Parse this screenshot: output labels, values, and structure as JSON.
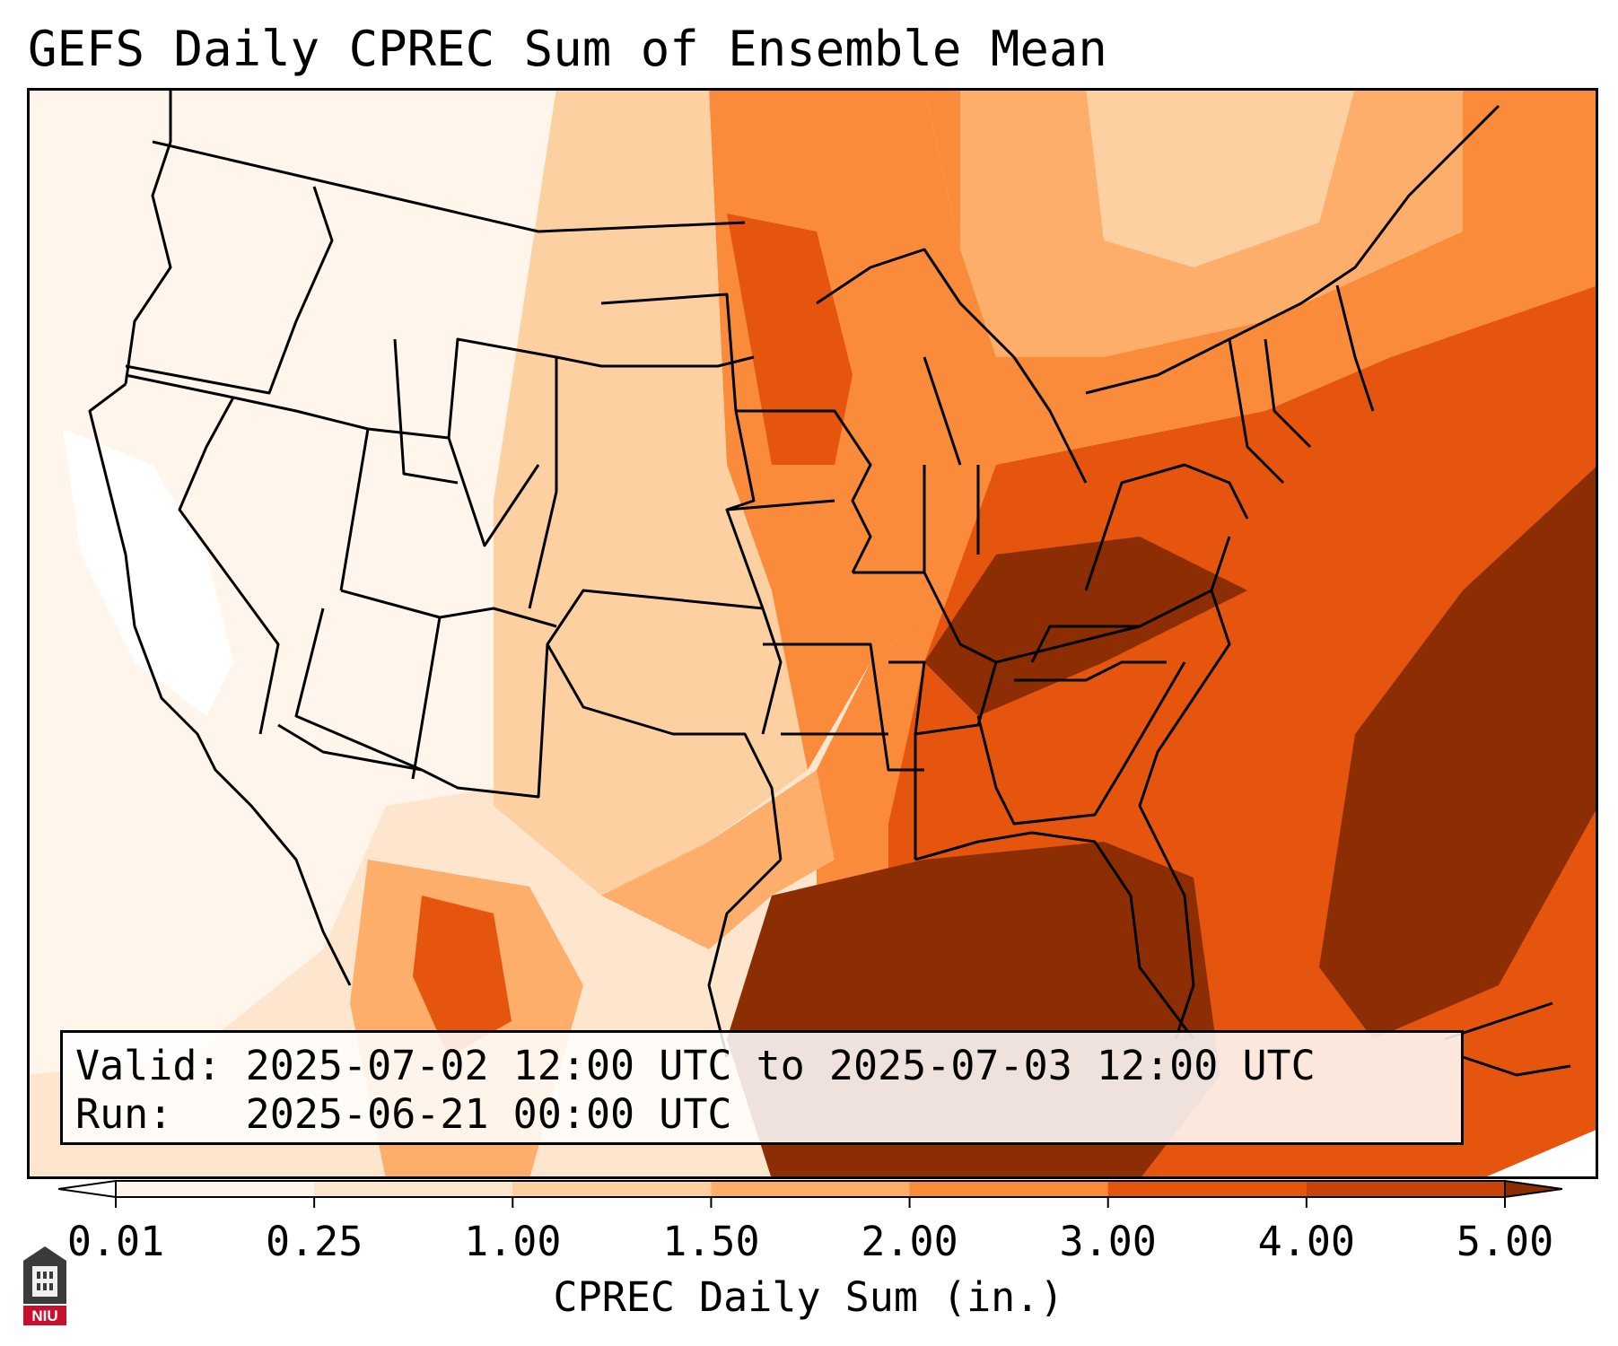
{
  "title": "GEFS Daily CPREC Sum of Ensemble Mean",
  "info": {
    "valid_label": "Valid:",
    "valid_value": "2025-07-02 12:00 UTC to 2025-07-03 12:00 UTC",
    "run_label": "Run:",
    "run_value": "2025-06-21 00:00 UTC"
  },
  "colorbar": {
    "label": "CPREC Daily Sum (in.)",
    "ticks": [
      "0.01",
      "0.25",
      "1.00",
      "1.50",
      "2.00",
      "3.00",
      "4.00",
      "5.00"
    ],
    "colors": [
      "#fff5eb",
      "#fee6ce",
      "#fdd0a2",
      "#fdae6b",
      "#f98b3b",
      "#e6550d",
      "#c84408",
      "#8c2d04"
    ],
    "under_color": "#ffffff",
    "over_color": "#8c2d04"
  },
  "logo": {
    "text": "NIU",
    "color": "#c8102e"
  },
  "map": {
    "region": "Continental United States",
    "field": "convective precipitation daily sum"
  }
}
